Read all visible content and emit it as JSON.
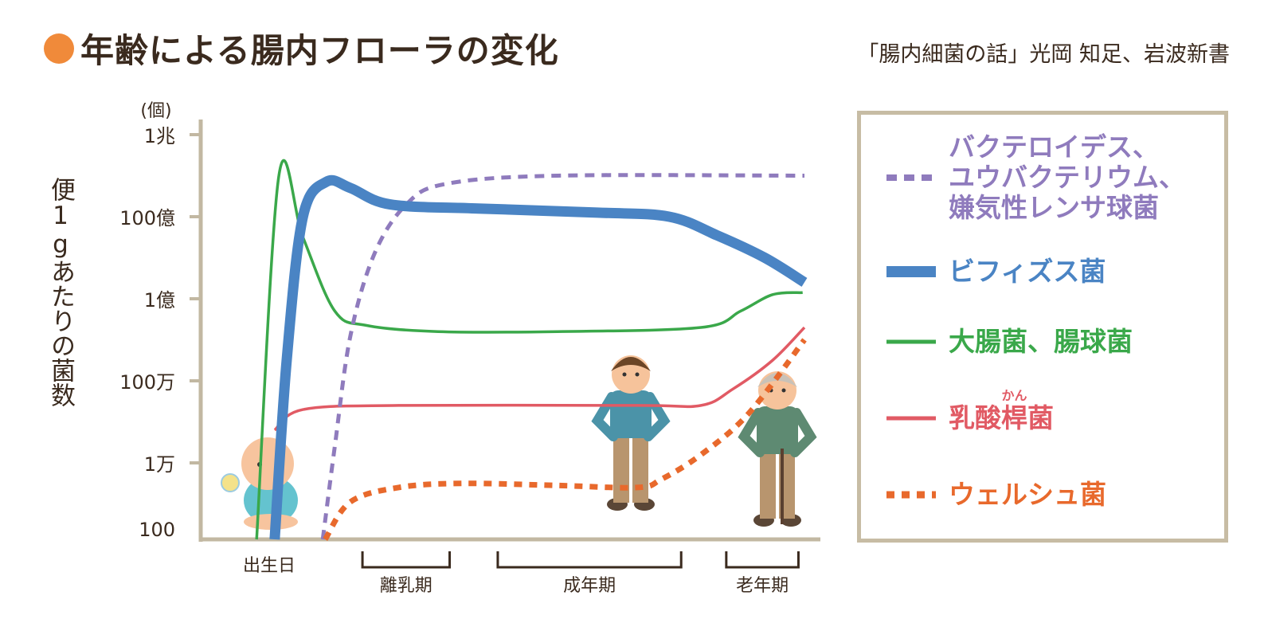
{
  "title": "年齢による腸内フローラの変化",
  "source": "「腸内細菌の話」光岡 知足、岩波新書",
  "chart_data": {
    "type": "line",
    "title": "年齢による腸内フローラの変化",
    "ylabel": "便1gあたりの菌数",
    "yunit": "(個)",
    "yscale": "log",
    "ylim_log10": [
      2,
      12
    ],
    "yticks": [
      {
        "value": 100,
        "label": "100"
      },
      {
        "value": 10000,
        "label": "1万"
      },
      {
        "value": 1000000,
        "label": "100万"
      },
      {
        "value": 100000000,
        "label": "1億"
      },
      {
        "value": 10000000000,
        "label": "100億"
      },
      {
        "value": 1000000000000,
        "label": "1兆"
      }
    ],
    "xlim": [
      0,
      100
    ],
    "xstages": [
      {
        "label": "出生日",
        "range": [
          11,
          11
        ]
      },
      {
        "label": "離乳期",
        "range": [
          26.5,
          41
        ]
      },
      {
        "label": "成年期",
        "range": [
          49,
          79.5
        ]
      },
      {
        "label": "老年期",
        "range": [
          87,
          99
        ]
      }
    ],
    "grid": false,
    "legend_position": "right",
    "series": [
      {
        "name": "バクテロイデス、ユウバクテリウム、嫌気性レンサ球菌",
        "color": "#8f7bbd",
        "style": "dashed",
        "x": [
          19.9,
          21.9,
          24.5,
          28.5,
          33.8,
          40.4,
          58.9,
          100
        ],
        "log10": [
          2.0,
          4.4,
          7.1,
          9.1,
          10.3,
          10.8,
          11.0,
          11.0
        ]
      },
      {
        "name": "ビフィズス菌",
        "color": "#4a84c4",
        "style": "thick",
        "x": [
          11.9,
          13.9,
          16.6,
          20.5,
          24.5,
          31.1,
          45.7,
          65.6,
          77.5,
          85.4,
          93.4,
          100
        ],
        "log10": [
          2.1,
          6.5,
          10.0,
          10.85,
          10.7,
          10.3,
          10.2,
          10.1,
          10.0,
          9.55,
          9.0,
          8.4
        ]
      },
      {
        "name": "大腸菌、腸球菌",
        "color": "#3aa84a",
        "style": "solid",
        "x": [
          8.9,
          12.6,
          16.6,
          21.9,
          27.2,
          39.1,
          58.9,
          82.8,
          89.4,
          94.7,
          99.7
        ],
        "log10": [
          2.1,
          11.0,
          9.5,
          7.7,
          7.35,
          7.2,
          7.2,
          7.3,
          7.7,
          8.1,
          8.15
        ]
      },
      {
        "name": "乳酸桿菌",
        "color": "#e15a64",
        "style": "solid",
        "x": [
          11.9,
          16.6,
          32.5,
          72.2,
          82.8,
          88.1,
          94.7,
          100
        ],
        "log10": [
          4.8,
          5.3,
          5.4,
          5.4,
          5.4,
          5.8,
          6.5,
          7.3
        ]
      },
      {
        "name": "ウェルシュ菌",
        "color": "#e8692c",
        "style": "dotted",
        "x": [
          20.3,
          24.5,
          32.5,
          43,
          58.9,
          72.2,
          76.2,
          82.8,
          90.7,
          100
        ],
        "log10": [
          2.0,
          3.05,
          3.4,
          3.5,
          3.45,
          3.4,
          3.6,
          4.2,
          5.2,
          7.0
        ]
      }
    ]
  },
  "legend": {
    "items": [
      {
        "label_lines": [
          "バクテロイデス、",
          "ユウバクテリウム、",
          "嫌気性レンサ球菌"
        ]
      },
      {
        "label": "ビフィズス菌"
      },
      {
        "label": "大腸菌、腸球菌"
      },
      {
        "label": "乳酸桿菌",
        "ruby_base": "桿",
        "ruby": "かん",
        "pre": "乳酸",
        "post": "菌"
      },
      {
        "label": "ウェルシュ菌"
      }
    ]
  },
  "colors": {
    "axis": "#c2b8a2",
    "bullet": "#f08a3a",
    "text": "#3a2a1e"
  },
  "icons": [
    "baby-illustration",
    "adult-man-illustration",
    "elderly-man-illustration"
  ]
}
